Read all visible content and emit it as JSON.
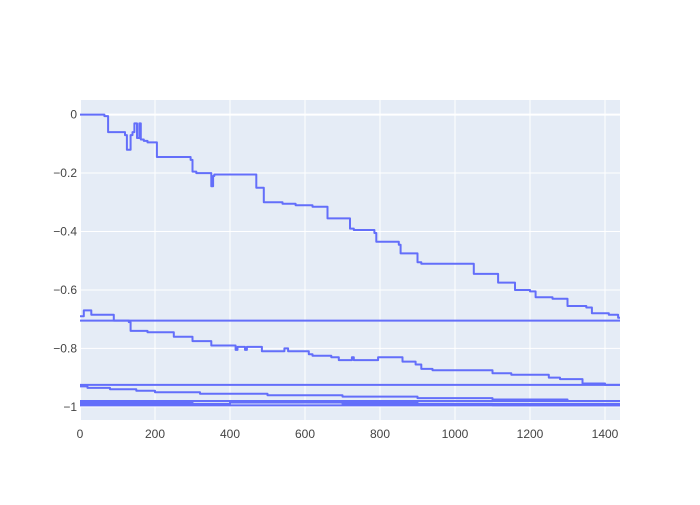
{
  "chart_data": {
    "type": "line",
    "title": "",
    "xlabel": "",
    "ylabel": "",
    "xlim": [
      0,
      1440
    ],
    "ylim": [
      -1.045,
      0.05
    ],
    "x_ticks": [
      0,
      200,
      400,
      600,
      800,
      1000,
      1200,
      1400
    ],
    "y_ticks": [
      0,
      -0.2,
      -0.4,
      -0.6,
      -0.8,
      -1
    ],
    "x_tick_labels": [
      "0",
      "200",
      "400",
      "600",
      "800",
      "1000",
      "1200",
      "1400"
    ],
    "y_tick_labels": [
      "0",
      "−0.2",
      "−0.4",
      "−0.6",
      "−0.8",
      "−1"
    ],
    "grid": true,
    "legend": "none",
    "line_color": "#636efa",
    "plot_bg": "#e5ecf6",
    "series": [
      {
        "points": [
          [
            0,
            0
          ],
          [
            65,
            0
          ],
          [
            65,
            -0.005
          ],
          [
            75,
            -0.005
          ],
          [
            75,
            -0.06
          ],
          [
            120,
            -0.06
          ],
          [
            120,
            -0.07
          ],
          [
            125,
            -0.07
          ],
          [
            125,
            -0.12
          ],
          [
            135,
            -0.12
          ],
          [
            135,
            -0.07
          ],
          [
            140,
            -0.07
          ],
          [
            140,
            -0.06
          ],
          [
            145,
            -0.06
          ],
          [
            145,
            -0.03
          ],
          [
            152,
            -0.03
          ],
          [
            152,
            -0.08
          ],
          [
            158,
            -0.08
          ],
          [
            158,
            -0.03
          ],
          [
            162,
            -0.03
          ],
          [
            162,
            -0.085
          ],
          [
            170,
            -0.085
          ],
          [
            170,
            -0.09
          ],
          [
            180,
            -0.09
          ],
          [
            180,
            -0.095
          ],
          [
            205,
            -0.095
          ],
          [
            205,
            -0.145
          ],
          [
            295,
            -0.145
          ],
          [
            295,
            -0.155
          ],
          [
            300,
            -0.155
          ],
          [
            300,
            -0.195
          ],
          [
            310,
            -0.195
          ],
          [
            310,
            -0.2
          ],
          [
            350,
            -0.2
          ],
          [
            350,
            -0.245
          ],
          [
            355,
            -0.245
          ],
          [
            355,
            -0.21
          ],
          [
            358,
            -0.21
          ],
          [
            358,
            -0.205
          ],
          [
            470,
            -0.205
          ],
          [
            470,
            -0.25
          ],
          [
            490,
            -0.25
          ],
          [
            490,
            -0.3
          ],
          [
            540,
            -0.3
          ],
          [
            540,
            -0.305
          ],
          [
            575,
            -0.305
          ],
          [
            575,
            -0.31
          ],
          [
            620,
            -0.31
          ],
          [
            620,
            -0.315
          ],
          [
            660,
            -0.315
          ],
          [
            660,
            -0.355
          ],
          [
            720,
            -0.355
          ],
          [
            720,
            -0.39
          ],
          [
            730,
            -0.39
          ],
          [
            730,
            -0.395
          ],
          [
            785,
            -0.395
          ],
          [
            785,
            -0.405
          ],
          [
            790,
            -0.405
          ],
          [
            790,
            -0.435
          ],
          [
            850,
            -0.435
          ],
          [
            850,
            -0.445
          ],
          [
            855,
            -0.445
          ],
          [
            855,
            -0.475
          ],
          [
            900,
            -0.475
          ],
          [
            900,
            -0.505
          ],
          [
            910,
            -0.505
          ],
          [
            910,
            -0.51
          ],
          [
            1050,
            -0.51
          ],
          [
            1050,
            -0.545
          ],
          [
            1115,
            -0.545
          ],
          [
            1115,
            -0.575
          ],
          [
            1160,
            -0.575
          ],
          [
            1160,
            -0.6
          ],
          [
            1200,
            -0.6
          ],
          [
            1200,
            -0.605
          ],
          [
            1215,
            -0.605
          ],
          [
            1215,
            -0.625
          ],
          [
            1260,
            -0.625
          ],
          [
            1260,
            -0.63
          ],
          [
            1300,
            -0.63
          ],
          [
            1300,
            -0.655
          ],
          [
            1350,
            -0.655
          ],
          [
            1350,
            -0.66
          ],
          [
            1365,
            -0.66
          ],
          [
            1365,
            -0.68
          ],
          [
            1410,
            -0.68
          ],
          [
            1410,
            -0.685
          ],
          [
            1435,
            -0.685
          ],
          [
            1435,
            -0.695
          ],
          [
            1440,
            -0.695
          ]
        ]
      },
      {
        "points": [
          [
            0,
            -0.705
          ],
          [
            1440,
            -0.705
          ]
        ]
      },
      {
        "points": [
          [
            0,
            -0.69
          ],
          [
            10,
            -0.69
          ],
          [
            10,
            -0.67
          ],
          [
            30,
            -0.67
          ],
          [
            30,
            -0.685
          ],
          [
            90,
            -0.685
          ],
          [
            90,
            -0.705
          ],
          [
            130,
            -0.705
          ],
          [
            130,
            -0.71
          ],
          [
            135,
            -0.71
          ],
          [
            135,
            -0.74
          ],
          [
            180,
            -0.74
          ],
          [
            180,
            -0.745
          ],
          [
            250,
            -0.745
          ],
          [
            250,
            -0.76
          ],
          [
            300,
            -0.76
          ],
          [
            300,
            -0.775
          ],
          [
            350,
            -0.775
          ],
          [
            350,
            -0.79
          ],
          [
            415,
            -0.79
          ],
          [
            415,
            -0.805
          ],
          [
            420,
            -0.805
          ],
          [
            420,
            -0.795
          ],
          [
            440,
            -0.795
          ],
          [
            440,
            -0.805
          ],
          [
            445,
            -0.805
          ],
          [
            445,
            -0.795
          ],
          [
            485,
            -0.795
          ],
          [
            485,
            -0.81
          ],
          [
            545,
            -0.81
          ],
          [
            545,
            -0.8
          ],
          [
            555,
            -0.8
          ],
          [
            555,
            -0.81
          ],
          [
            610,
            -0.81
          ],
          [
            610,
            -0.82
          ],
          [
            620,
            -0.82
          ],
          [
            620,
            -0.825
          ],
          [
            670,
            -0.825
          ],
          [
            670,
            -0.83
          ],
          [
            690,
            -0.83
          ],
          [
            690,
            -0.84
          ],
          [
            725,
            -0.84
          ],
          [
            725,
            -0.83
          ],
          [
            730,
            -0.83
          ],
          [
            730,
            -0.84
          ],
          [
            795,
            -0.84
          ],
          [
            795,
            -0.83
          ],
          [
            860,
            -0.83
          ],
          [
            860,
            -0.845
          ],
          [
            895,
            -0.845
          ],
          [
            895,
            -0.855
          ],
          [
            910,
            -0.855
          ],
          [
            910,
            -0.87
          ],
          [
            940,
            -0.87
          ],
          [
            940,
            -0.875
          ],
          [
            1100,
            -0.875
          ],
          [
            1100,
            -0.885
          ],
          [
            1150,
            -0.885
          ],
          [
            1150,
            -0.89
          ],
          [
            1250,
            -0.89
          ],
          [
            1250,
            -0.9
          ],
          [
            1280,
            -0.9
          ],
          [
            1280,
            -0.905
          ],
          [
            1340,
            -0.905
          ],
          [
            1340,
            -0.92
          ],
          [
            1400,
            -0.92
          ],
          [
            1400,
            -0.925
          ],
          [
            1440,
            -0.925
          ]
        ]
      },
      {
        "points": [
          [
            0,
            -0.925
          ],
          [
            1440,
            -0.925
          ]
        ]
      },
      {
        "points": [
          [
            0,
            -0.93
          ],
          [
            20,
            -0.93
          ],
          [
            20,
            -0.935
          ],
          [
            80,
            -0.935
          ],
          [
            80,
            -0.94
          ],
          [
            150,
            -0.94
          ],
          [
            150,
            -0.945
          ],
          [
            200,
            -0.945
          ],
          [
            200,
            -0.95
          ],
          [
            320,
            -0.95
          ],
          [
            320,
            -0.955
          ],
          [
            500,
            -0.955
          ],
          [
            500,
            -0.96
          ],
          [
            700,
            -0.96
          ],
          [
            700,
            -0.965
          ],
          [
            900,
            -0.965
          ],
          [
            900,
            -0.97
          ],
          [
            1100,
            -0.97
          ],
          [
            1100,
            -0.975
          ],
          [
            1300,
            -0.975
          ],
          [
            1300,
            -0.98
          ],
          [
            1440,
            -0.98
          ]
        ]
      },
      {
        "points": [
          [
            0,
            -0.98
          ],
          [
            1440,
            -0.98
          ]
        ]
      },
      {
        "points": [
          [
            0,
            -0.985
          ],
          [
            300,
            -0.985
          ],
          [
            300,
            -0.98
          ],
          [
            500,
            -0.98
          ],
          [
            500,
            -0.985
          ],
          [
            900,
            -0.985
          ],
          [
            900,
            -0.99
          ],
          [
            1440,
            -0.99
          ]
        ]
      },
      {
        "points": [
          [
            0,
            -0.99
          ],
          [
            400,
            -0.99
          ],
          [
            400,
            -0.985
          ],
          [
            700,
            -0.985
          ],
          [
            700,
            -0.99
          ],
          [
            1100,
            -0.99
          ],
          [
            1100,
            -0.995
          ],
          [
            1440,
            -0.995
          ]
        ]
      },
      {
        "points": [
          [
            0,
            -0.995
          ],
          [
            1440,
            -0.995
          ]
        ]
      }
    ]
  }
}
